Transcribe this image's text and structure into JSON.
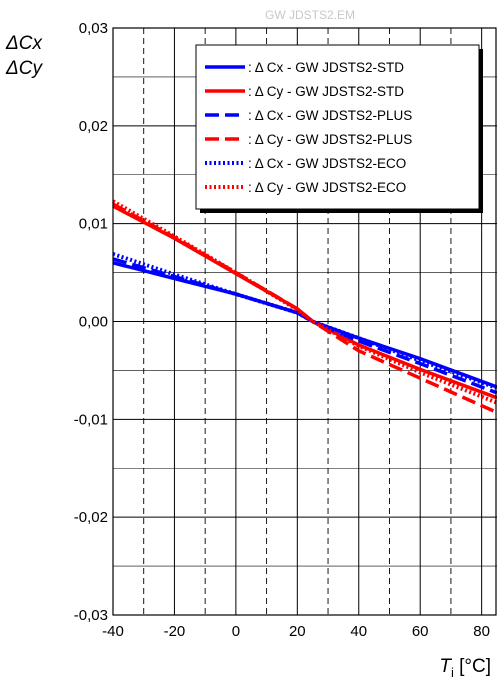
{
  "watermark": "GW JDSTS2.EM",
  "chart_data": {
    "type": "line",
    "ylabel_lines": [
      "ΔCx",
      "ΔCy"
    ],
    "xlabel_symbol": "T",
    "xlabel_subscript": "i",
    "xlabel_unit": "[°C]",
    "xlim": [
      -40,
      85
    ],
    "ylim": [
      -0.03,
      0.03
    ],
    "x_ticks": [
      -40,
      -20,
      0,
      20,
      40,
      60,
      80
    ],
    "x_tick_labels": [
      "-40",
      "-20",
      "0",
      "20",
      "40",
      "60",
      "80"
    ],
    "y_ticks": [
      -0.03,
      -0.02,
      -0.01,
      0.0,
      0.01,
      0.02,
      0.03
    ],
    "y_tick_labels": [
      "-0,03",
      "-0,02",
      "-0,01",
      "0,00",
      "0,01",
      "0,02",
      "0,03"
    ],
    "grid": true,
    "legend_position": "top-right",
    "series": [
      {
        "name": ": Δ Cx - GW JDSTS2-STD",
        "color": "#0000ff",
        "style": "solid",
        "x": [
          -40,
          -20,
          0,
          20,
          25,
          40,
          60,
          85
        ],
        "y": [
          0.006,
          0.0044,
          0.0028,
          0.0009,
          0.0,
          -0.0017,
          -0.0038,
          -0.0067
        ]
      },
      {
        "name": ": Δ Cy - GW JDSTS2-STD",
        "color": "#ff0000",
        "style": "solid",
        "x": [
          -40,
          -20,
          0,
          20,
          25,
          40,
          60,
          85
        ],
        "y": [
          0.0118,
          0.0085,
          0.0049,
          0.0013,
          0.0,
          -0.0024,
          -0.0049,
          -0.0078
        ]
      },
      {
        "name": ": Δ Cx - GW JDSTS2-PLUS",
        "color": "#0000ff",
        "style": "dashed",
        "x": [
          -40,
          -20,
          0,
          20,
          25,
          40,
          60,
          85
        ],
        "y": [
          0.0064,
          0.0046,
          0.0028,
          0.0009,
          0.0,
          -0.002,
          -0.0043,
          -0.0073
        ]
      },
      {
        "name": ": Δ Cy - GW JDSTS2-PLUS",
        "color": "#ff0000",
        "style": "dashed",
        "x": [
          -40,
          -20,
          0,
          20,
          25,
          40,
          60,
          85
        ],
        "y": [
          0.012,
          0.0086,
          0.005,
          0.0013,
          0.0,
          -0.003,
          -0.0058,
          -0.0093
        ]
      },
      {
        "name": ": Δ Cx - GW JDSTS2-ECO",
        "color": "#0000ff",
        "style": "dotted",
        "x": [
          -40,
          -20,
          0,
          20,
          25,
          40,
          60,
          85
        ],
        "y": [
          0.0069,
          0.0048,
          0.0028,
          0.0009,
          0.0,
          -0.0017,
          -0.004,
          -0.0068
        ]
      },
      {
        "name": ": Δ Cy - GW JDSTS2-ECO",
        "color": "#ff0000",
        "style": "dotted",
        "x": [
          -40,
          -20,
          0,
          20,
          25,
          40,
          60,
          85
        ],
        "y": [
          0.0123,
          0.0087,
          0.005,
          0.0012,
          0.0,
          -0.0025,
          -0.0052,
          -0.0083
        ]
      }
    ]
  }
}
